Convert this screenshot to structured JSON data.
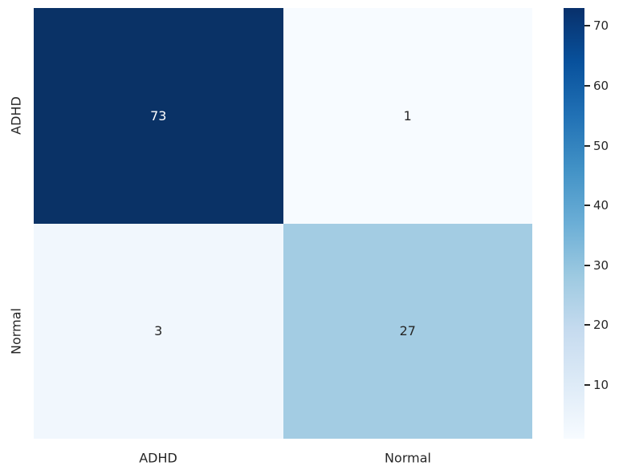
{
  "chart_data": {
    "type": "heatmap",
    "title": "",
    "xlabel": "",
    "ylabel": "",
    "x_categories": [
      "ADHD",
      "Normal"
    ],
    "y_categories": [
      "ADHD",
      "Normal"
    ],
    "matrix": [
      [
        73,
        1
      ],
      [
        3,
        27
      ]
    ],
    "vmin": 1,
    "vmax": 73,
    "colormap": "Blues",
    "grid": false,
    "cell_colors": [
      [
        "#0a3266",
        "#f7fbff"
      ],
      [
        "#f1f7fd",
        "#a3cce3"
      ]
    ],
    "cell_text_colors": [
      [
        "#ffffff",
        "#262626"
      ],
      [
        "#262626",
        "#262626"
      ]
    ],
    "tick_color": "#262626",
    "colorbar": {
      "position": "right",
      "ticks": [
        10,
        20,
        30,
        40,
        50,
        60,
        70
      ],
      "gradient_stops": [
        {
          "t": 0.0,
          "color": "#f7fbff"
        },
        {
          "t": 0.125,
          "color": "#deebf7"
        },
        {
          "t": 0.25,
          "color": "#c6dbef"
        },
        {
          "t": 0.375,
          "color": "#9ecae1"
        },
        {
          "t": 0.5,
          "color": "#6baed6"
        },
        {
          "t": 0.625,
          "color": "#4292c6"
        },
        {
          "t": 0.75,
          "color": "#2171b5"
        },
        {
          "t": 0.875,
          "color": "#08519c"
        },
        {
          "t": 1.0,
          "color": "#08306b"
        }
      ]
    }
  }
}
